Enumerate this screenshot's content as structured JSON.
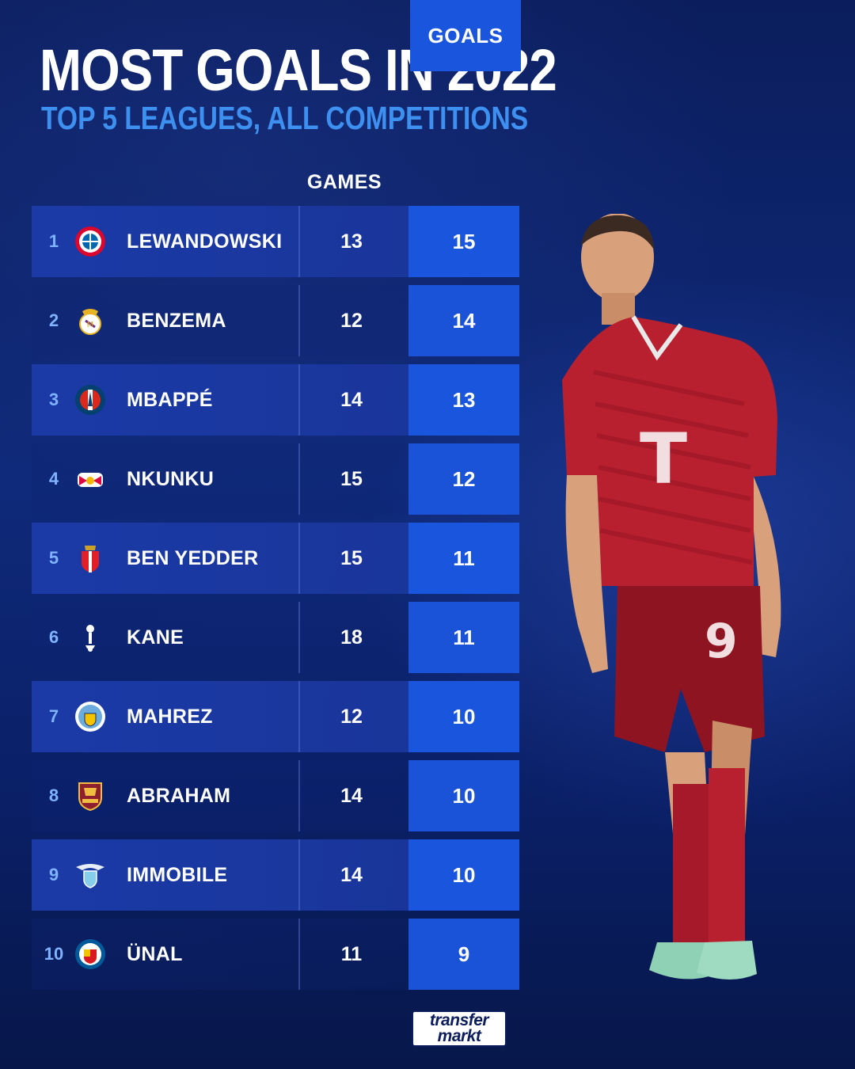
{
  "header": {
    "title": "MOST GOALS IN 2022",
    "subtitle": "TOP 5 LEAGUES, ALL COMPETITIONS"
  },
  "columns": {
    "games": "GAMES",
    "goals": "GOALS"
  },
  "rows": [
    {
      "rank": "1",
      "name": "LEWANDOWSKI",
      "games": "13",
      "goals": "15",
      "club_icon": "bayern-munich-crest-icon"
    },
    {
      "rank": "2",
      "name": "BENZEMA",
      "games": "12",
      "goals": "14",
      "club_icon": "real-madrid-crest-icon"
    },
    {
      "rank": "3",
      "name": "MBAPPÉ",
      "games": "14",
      "goals": "13",
      "club_icon": "psg-crest-icon"
    },
    {
      "rank": "4",
      "name": "NKUNKU",
      "games": "15",
      "goals": "12",
      "club_icon": "rb-leipzig-crest-icon"
    },
    {
      "rank": "5",
      "name": "BEN YEDDER",
      "games": "15",
      "goals": "11",
      "club_icon": "as-monaco-crest-icon"
    },
    {
      "rank": "6",
      "name": "KANE",
      "games": "18",
      "goals": "11",
      "club_icon": "tottenham-crest-icon"
    },
    {
      "rank": "7",
      "name": "MAHREZ",
      "games": "12",
      "goals": "10",
      "club_icon": "manchester-city-crest-icon"
    },
    {
      "rank": "8",
      "name": "ABRAHAM",
      "games": "14",
      "goals": "10",
      "club_icon": "as-roma-crest-icon"
    },
    {
      "rank": "9",
      "name": "IMMOBILE",
      "games": "14",
      "goals": "10",
      "club_icon": "lazio-crest-icon"
    },
    {
      "rank": "10",
      "name": "ÜNAL",
      "games": "11",
      "goals": "9",
      "club_icon": "getafe-crest-icon"
    }
  ],
  "footer": {
    "logo_line1": "transfer",
    "logo_line2": "markt"
  },
  "colors": {
    "title": "#ffffff",
    "subtitle_accent": "#3d8ff0",
    "goals_cell": "#1a55dd",
    "background": "#0b1d5c"
  }
}
